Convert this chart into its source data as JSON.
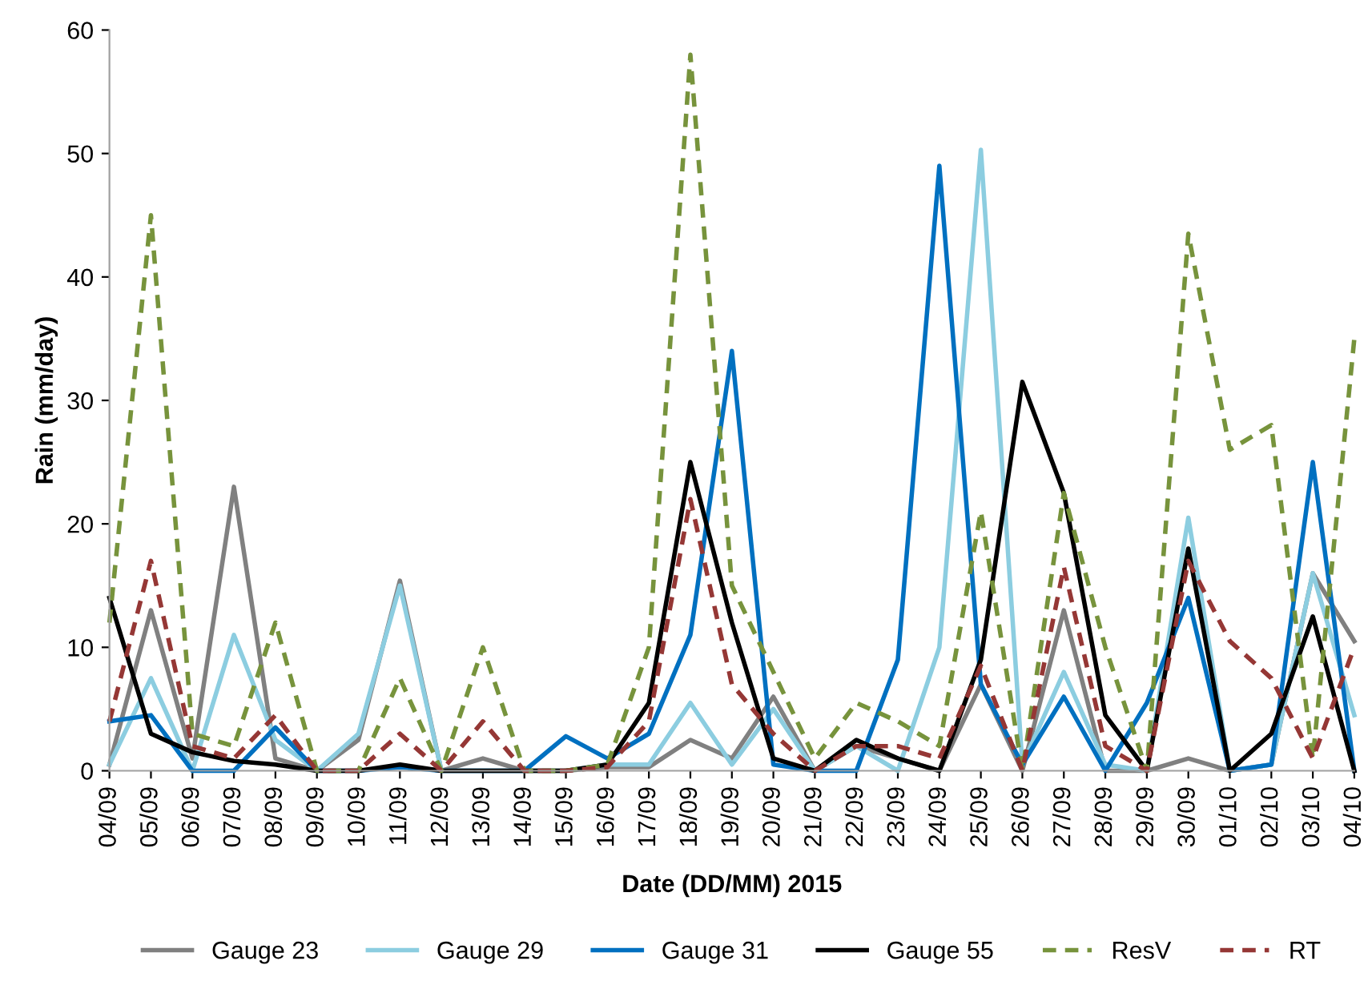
{
  "chart_data": {
    "type": "line",
    "xlabel": "Date (DD/MM) 2015",
    "ylabel": "Rain (mm/day)",
    "categories": [
      "04/09",
      "05/09",
      "06/09",
      "07/09",
      "08/09",
      "09/09",
      "10/09",
      "11/09",
      "12/09",
      "13/09",
      "14/09",
      "15/09",
      "16/09",
      "17/09",
      "18/09",
      "19/09",
      "20/09",
      "21/09",
      "22/09",
      "23/09",
      "24/09",
      "25/09",
      "26/09",
      "27/09",
      "28/09",
      "29/09",
      "30/09",
      "01/10",
      "02/10",
      "03/10",
      "04/10"
    ],
    "ylim": [
      0,
      60
    ],
    "yticks": [
      0,
      10,
      20,
      30,
      40,
      50,
      60
    ],
    "grid": false,
    "legend": "bottom",
    "marker": "none",
    "series": [
      {
        "name": "Gauge 23",
        "color": "#808080",
        "line_style": "solid",
        "values": [
          0.5,
          13,
          1,
          23,
          1,
          0,
          2.5,
          15.4,
          0,
          1,
          0,
          0,
          0.3,
          0.3,
          2.5,
          1,
          6,
          0,
          2,
          1,
          0,
          7,
          0,
          13,
          0,
          0,
          1,
          0,
          0.5,
          16,
          10.5
        ]
      },
      {
        "name": "Gauge 29",
        "color": "#8ccde0",
        "line_style": "solid",
        "values": [
          0.5,
          7.5,
          0,
          11,
          2.5,
          0,
          3,
          15,
          0,
          0,
          0,
          0,
          0.5,
          0.5,
          5.5,
          0.5,
          5,
          0,
          2,
          0,
          10,
          50.3,
          0.5,
          8,
          0.5,
          0,
          20.5,
          0,
          0.5,
          16,
          4.5
        ]
      },
      {
        "name": "Gauge 31",
        "color": "#0070c0",
        "line_style": "solid",
        "values": [
          4,
          4.5,
          0,
          0,
          3.5,
          0,
          0,
          0.3,
          0,
          0,
          0,
          2.8,
          1,
          3,
          11,
          34,
          0.5,
          0,
          0,
          9,
          49,
          7,
          0.5,
          6,
          0,
          5.5,
          14,
          0,
          0.5,
          25,
          0
        ]
      },
      {
        "name": "Gauge 55",
        "color": "#000000",
        "line_style": "solid",
        "values": [
          14,
          3,
          1.5,
          0.8,
          0.5,
          0,
          0,
          0.5,
          0,
          0,
          0,
          0,
          0.5,
          5.5,
          25,
          12,
          1,
          0,
          2.5,
          1,
          0,
          9,
          31.5,
          22.5,
          4.5,
          0,
          18,
          0,
          3,
          12.5,
          0
        ]
      },
      {
        "name": "ResV",
        "color": "#77933c",
        "line_style": "dashed",
        "values": [
          12,
          45,
          3,
          2,
          12,
          0,
          0,
          7.5,
          0,
          10,
          0,
          0,
          0.5,
          10,
          58,
          15,
          8,
          1,
          5.5,
          4,
          2,
          21,
          0,
          22.5,
          10,
          0,
          43.5,
          26,
          28,
          1,
          35
        ]
      },
      {
        "name": "RT",
        "color": "#953735",
        "line_style": "dashed",
        "values": [
          4,
          17,
          2,
          1,
          4.5,
          0,
          0,
          3,
          0,
          4,
          0,
          0,
          0.3,
          4,
          22,
          7,
          3,
          0,
          2,
          2,
          1,
          8.5,
          0,
          16.5,
          2,
          0,
          17,
          10.5,
          7.5,
          1,
          10
        ]
      }
    ]
  }
}
